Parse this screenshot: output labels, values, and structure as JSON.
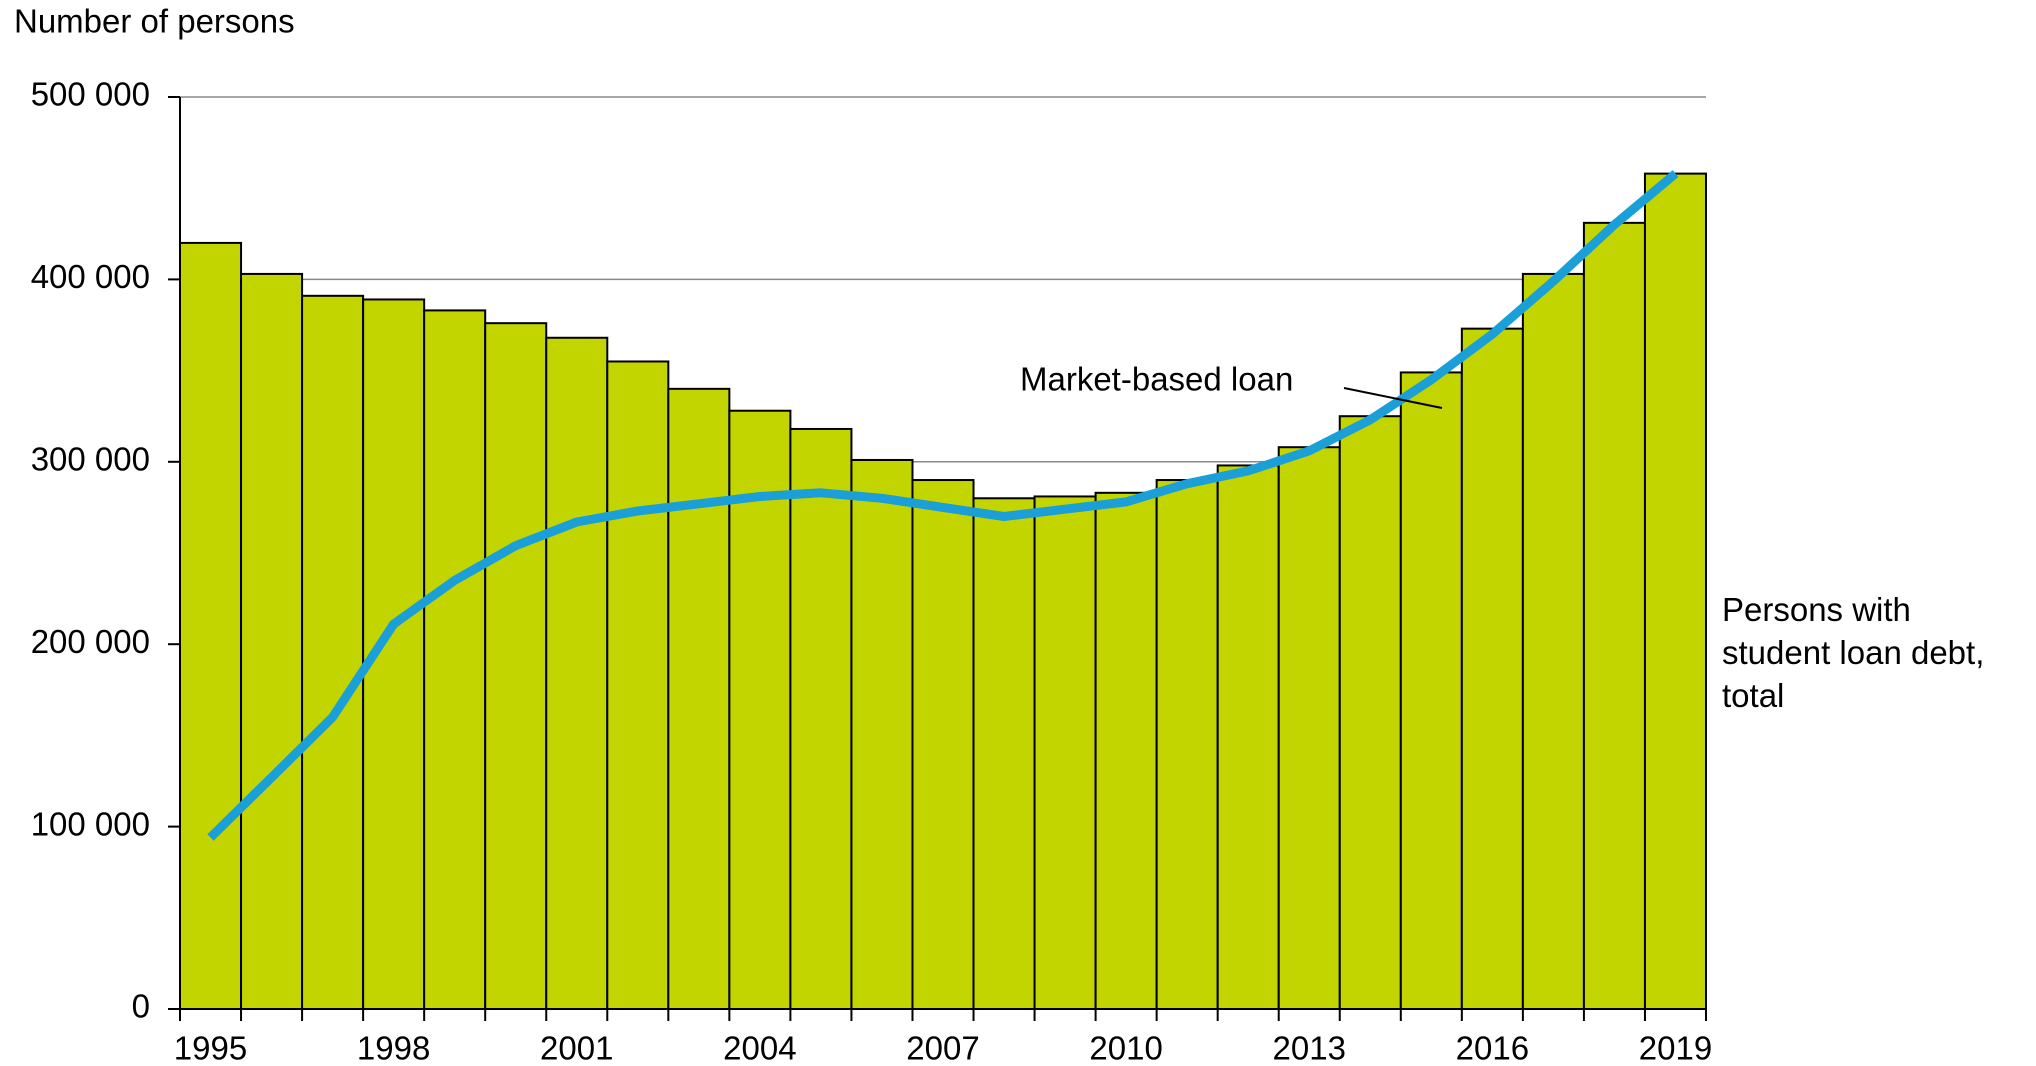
{
  "chart_data": {
    "type": "bar",
    "y_label": "Number of persons",
    "categories": [
      "1995",
      null,
      null,
      "1998",
      null,
      null,
      "2001",
      null,
      null,
      "2004",
      null,
      null,
      "2007",
      null,
      null,
      "2010",
      null,
      null,
      "2013",
      null,
      null,
      "2016",
      null,
      null,
      "2019"
    ],
    "series": [
      {
        "name": "Persons with student loan debt, total",
        "type": "bar",
        "color": "#c2d500",
        "values": [
          420000,
          403000,
          391000,
          389000,
          383000,
          376000,
          368000,
          355000,
          340000,
          328000,
          318000,
          301000,
          290000,
          280000,
          281000,
          283000,
          290000,
          298000,
          308000,
          325000,
          349000,
          373000,
          403000,
          431000,
          458000
        ]
      },
      {
        "name": "Market-based loan",
        "type": "line",
        "color": "#1a9fd9",
        "values": [
          94000,
          127000,
          160000,
          211000,
          235000,
          254000,
          267000,
          273000,
          277000,
          281000,
          283000,
          280000,
          275000,
          270000,
          274000,
          278000,
          288000,
          295000,
          306000,
          323000,
          345000,
          370000,
          399000,
          430000,
          458000
        ]
      }
    ],
    "ylim": [
      0,
      500000
    ],
    "yticks": [
      {
        "value": 0,
        "label": "0"
      },
      {
        "value": 100000,
        "label": "100 000"
      },
      {
        "value": 200000,
        "label": "200 000"
      },
      {
        "value": 300000,
        "label": "300 000"
      },
      {
        "value": 400000,
        "label": "400 000"
      },
      {
        "value": 500000,
        "label": "500 000"
      }
    ],
    "grid": true
  }
}
